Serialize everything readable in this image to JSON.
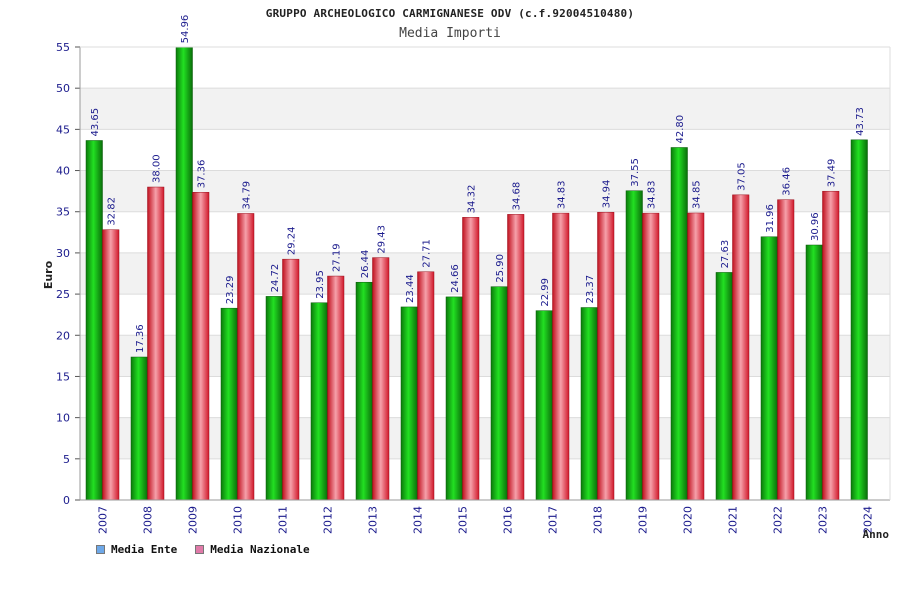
{
  "chart_data": {
    "type": "bar",
    "title": "GRUPPO ARCHEOLOGICO CARMIGNANESE ODV (c.f.92004510480)",
    "subtitle": "Media Importi",
    "ylabel": "Euro",
    "xlabel": "Anno",
    "ylim": [
      0,
      55
    ],
    "yticks": [
      0,
      5,
      10,
      15,
      20,
      25,
      30,
      35,
      40,
      45,
      50,
      55
    ],
    "grid": true,
    "legend_position": "bottom-left",
    "categories": [
      "2007",
      "2008",
      "2009",
      "2010",
      "2011",
      "2012",
      "2013",
      "2014",
      "2015",
      "2016",
      "2017",
      "2018",
      "2019",
      "2020",
      "2021",
      "2022",
      "2023",
      "2024"
    ],
    "series": [
      {
        "name": "Media Ente",
        "color": "#1faa1f",
        "legend_color": "#6ea8e8",
        "values": [
          43.65,
          17.36,
          54.96,
          23.29,
          24.72,
          23.95,
          26.44,
          23.44,
          24.66,
          25.9,
          22.99,
          23.37,
          37.55,
          42.8,
          27.63,
          31.96,
          30.96,
          43.73
        ],
        "labels": [
          "43.65",
          "17.36",
          "54.96",
          "23.29",
          "24.72",
          "23.95",
          "26.44",
          "23.44",
          "24.66",
          "25.90",
          "22.99",
          "23.37",
          "37.55",
          "42.80",
          "27.63",
          "31.96",
          "30.96",
          "43.73"
        ]
      },
      {
        "name": "Media Nazionale",
        "color": "#e8283a",
        "legend_color": "#e07aa8",
        "values": [
          32.82,
          38.0,
          37.36,
          34.79,
          29.24,
          27.19,
          29.43,
          27.71,
          34.32,
          34.68,
          34.83,
          34.94,
          34.83,
          34.85,
          37.05,
          36.46,
          37.49,
          null
        ],
        "labels": [
          "32.82",
          "38.00",
          "37.36",
          "34.79",
          "29.24",
          "27.19",
          "29.43",
          "27.71",
          "34.32",
          "34.68",
          "34.83",
          "34.94",
          "34.83",
          "34.85",
          "37.05",
          "36.46",
          "37.49",
          null
        ]
      }
    ]
  }
}
